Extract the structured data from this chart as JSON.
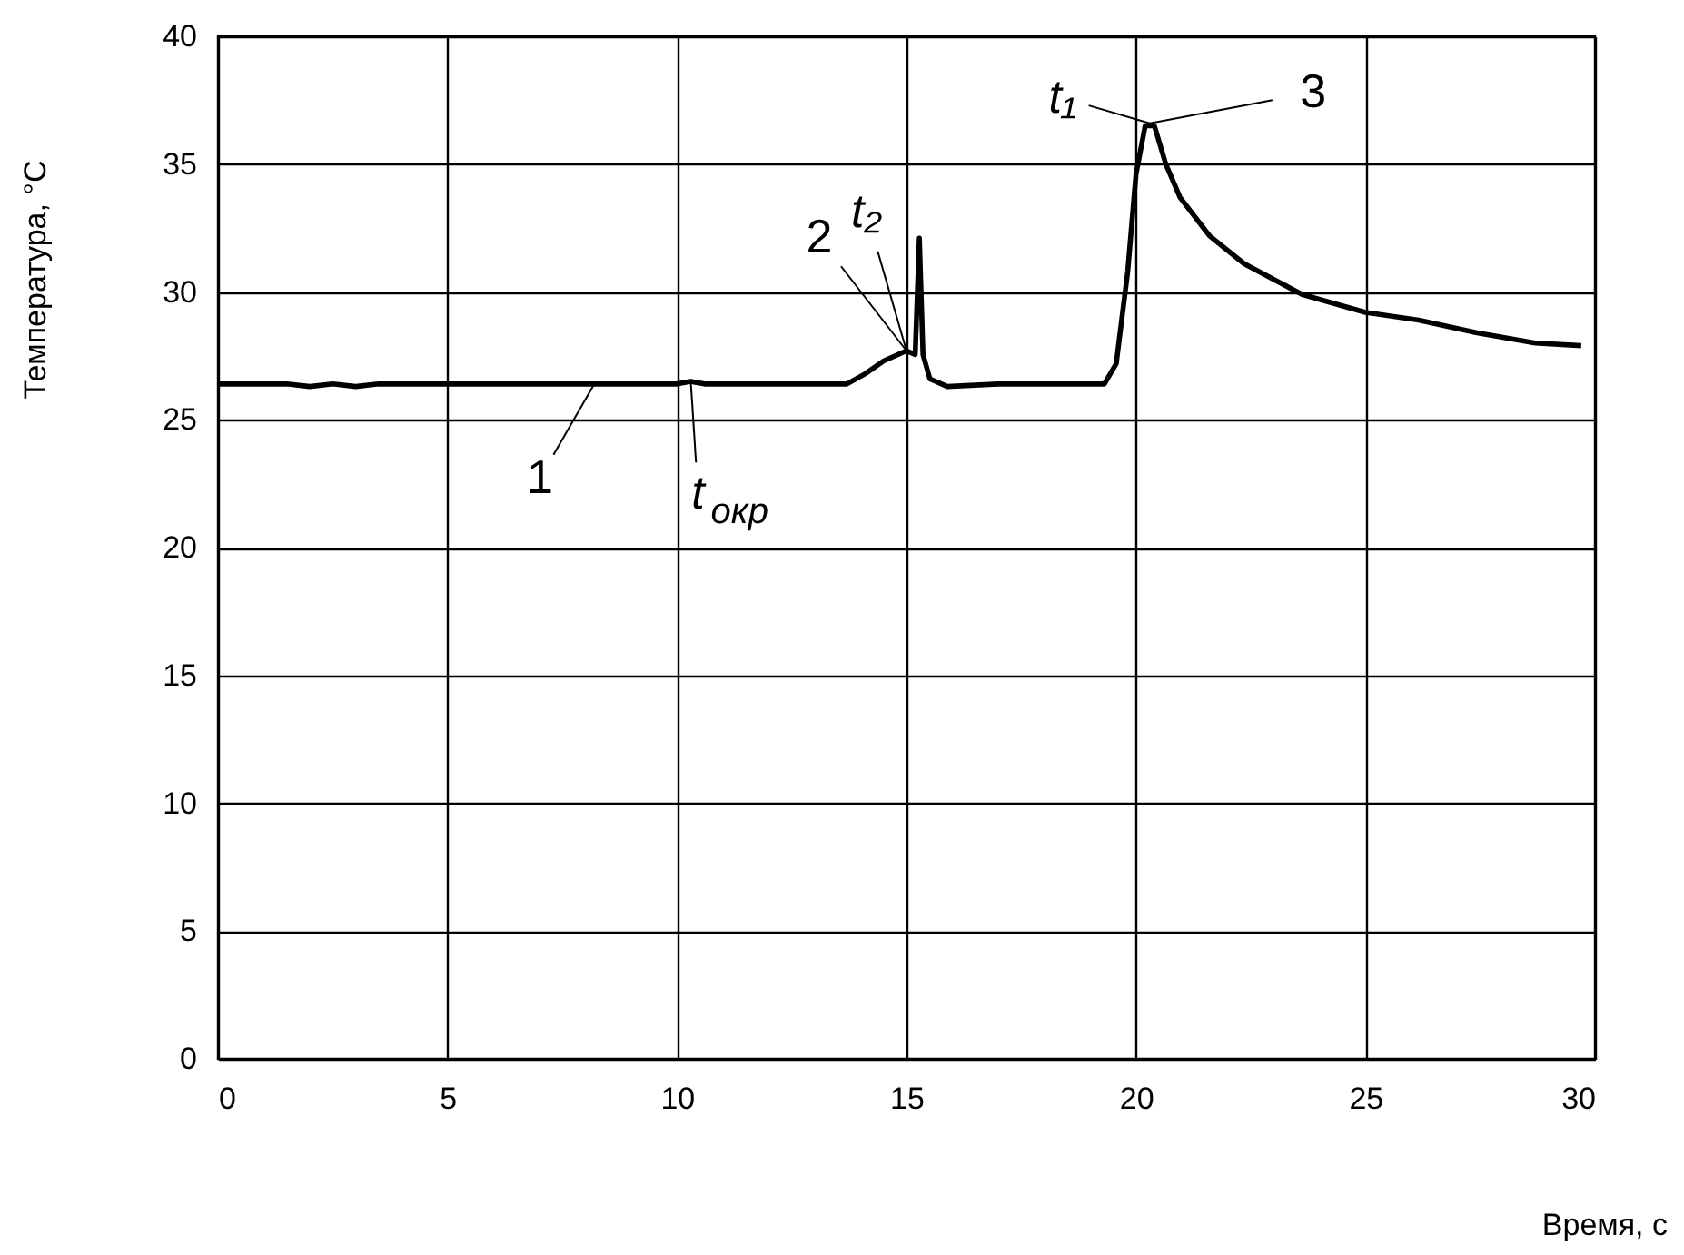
{
  "chart_data": {
    "type": "line",
    "xlabel": "Время, с",
    "ylabel": "Температура, °C",
    "xlim": [
      0,
      30
    ],
    "ylim": [
      0,
      40
    ],
    "xticks": [
      0,
      5,
      10,
      15,
      20,
      25,
      30
    ],
    "yticks": [
      0,
      5,
      10,
      15,
      20,
      25,
      30,
      35,
      40
    ],
    "grid": true,
    "marker": "none",
    "line_style": "solid",
    "series": [
      {
        "color": "#000000",
        "x": [
          0,
          1.5,
          2,
          2.5,
          3,
          3.5,
          4,
          5,
          7,
          8,
          9,
          10,
          10.3,
          10.6,
          12,
          13.7,
          14.1,
          14.5,
          15.0,
          15.19,
          15.28,
          15.36,
          15.51,
          15.89,
          17,
          19.31,
          19.57,
          19.82,
          20.0,
          20.2,
          20.4,
          20.65,
          20.96,
          21.6,
          22.36,
          23.62,
          25.0,
          26.16,
          27.43,
          28.7,
          29.7
        ],
        "values": [
          26.4,
          26.4,
          26.3,
          26.4,
          26.3,
          26.4,
          26.4,
          26.4,
          26.4,
          26.4,
          26.4,
          26.4,
          26.5,
          26.4,
          26.4,
          26.4,
          26.8,
          27.3,
          27.7,
          27.55,
          32.1,
          27.55,
          26.6,
          26.3,
          26.4,
          26.4,
          27.2,
          30.8,
          34.6,
          36.5,
          36.5,
          35.0,
          33.7,
          32.2,
          31.1,
          29.9,
          29.2,
          28.9,
          28.4,
          28.0,
          27.9
        ]
      }
    ],
    "annotations": [
      {
        "text": "1",
        "x": 8.2,
        "y": 26.4
      },
      {
        "text": "t$_{окр}$",
        "x": 10.3,
        "y": 26.5
      },
      {
        "text": "2",
        "x": 15.0,
        "y": 27.7
      },
      {
        "text": "t₂",
        "x": 15.0,
        "y": 27.7
      },
      {
        "text": "t₁",
        "x": 20.3,
        "y": 36.6
      },
      {
        "text": "3",
        "x": 20.3,
        "y": 36.6
      }
    ]
  }
}
